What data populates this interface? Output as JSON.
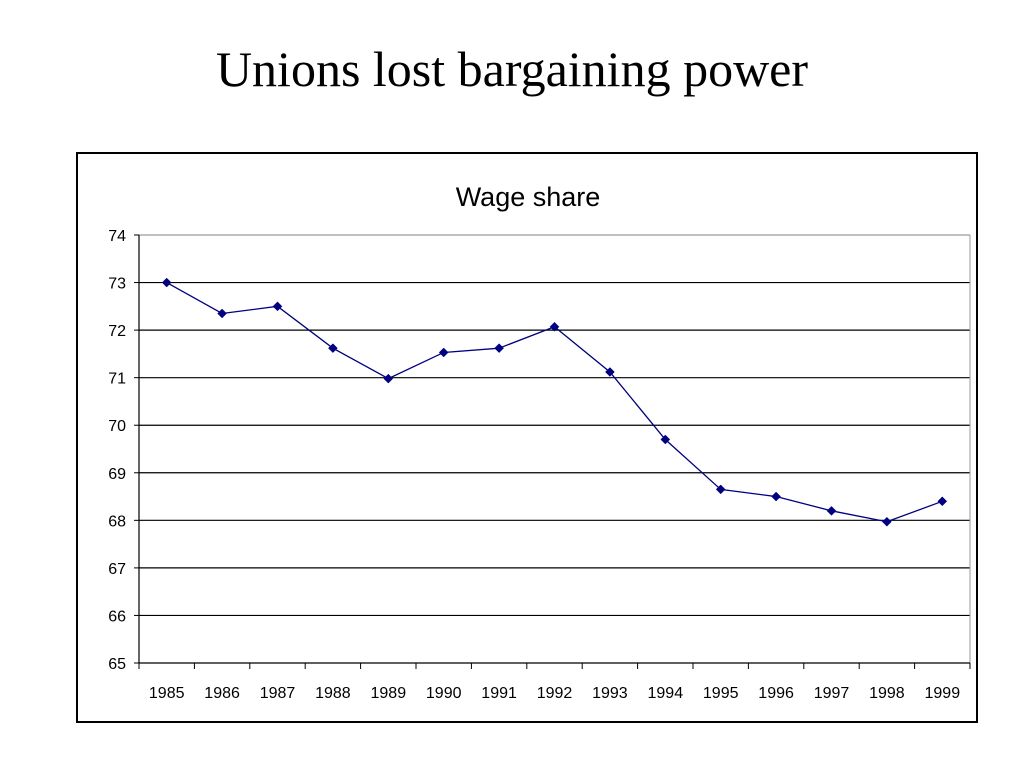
{
  "slide": {
    "title": "Unions lost bargaining power"
  },
  "chart_data": {
    "type": "line",
    "title": "Wage share",
    "xlabel": "",
    "ylabel": "",
    "categories": [
      "1985",
      "1986",
      "1987",
      "1988",
      "1989",
      "1990",
      "1991",
      "1992",
      "1993",
      "1994",
      "1995",
      "1996",
      "1997",
      "1998",
      "1999"
    ],
    "series": [
      {
        "values": [
          73.0,
          72.35,
          72.5,
          71.62,
          70.98,
          71.53,
          71.62,
          72.07,
          71.12,
          69.7,
          68.65,
          68.5,
          68.2,
          67.97,
          68.4
        ],
        "color": "#000080",
        "marker": "diamond"
      }
    ],
    "ylim": [
      65,
      74
    ],
    "yticks": [
      65,
      66,
      67,
      68,
      69,
      70,
      71,
      72,
      73,
      74
    ],
    "grid": true,
    "legend": "none"
  }
}
